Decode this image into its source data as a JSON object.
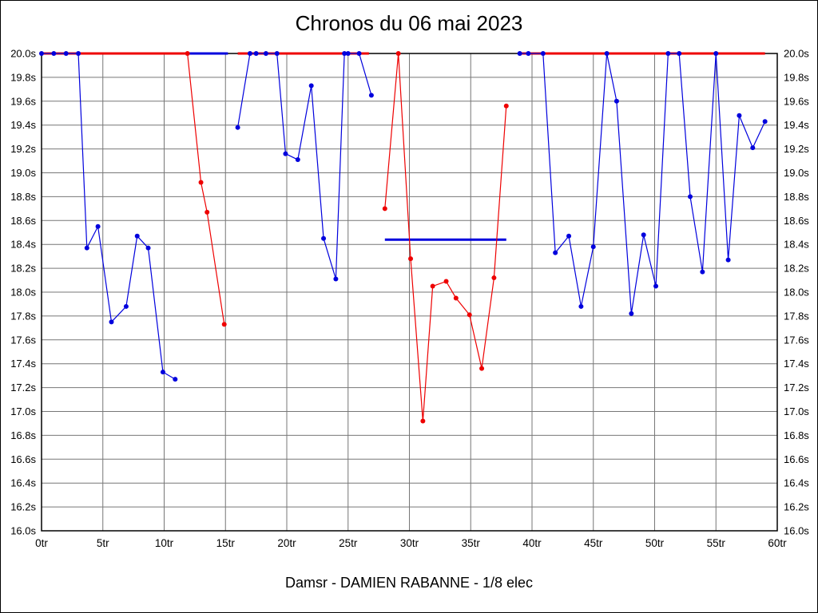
{
  "header": {
    "title": "Chronos du 06 mai 2023"
  },
  "footer": {
    "caption": "Damsr - DAMIEN RABANNE - 1/8 elec"
  },
  "chart_data": {
    "type": "line",
    "title": "Chronos du 06 mai 2023",
    "caption": "Damsr - DAMIEN RABANNE - 1/8 elec",
    "xlim": [
      0,
      60
    ],
    "ylim": [
      16.0,
      20.0
    ],
    "x_tick_step": 5,
    "y_tick_step": 0.2,
    "x_suffix": "tr",
    "y_suffix": "s",
    "grid": true,
    "grid_color": "#777777",
    "colors": {
      "blue": "#0000dd",
      "red": "#ee0000"
    },
    "series": [
      {
        "name": "driver-blue",
        "color": "#0000dd",
        "segments": [
          [
            [
              0,
              20
            ],
            [
              1,
              20
            ],
            [
              2,
              20
            ],
            [
              3,
              20
            ],
            [
              3.7,
              18.37
            ],
            [
              4.6,
              18.55
            ],
            [
              5.7,
              17.75
            ],
            [
              6.9,
              17.88
            ],
            [
              7.8,
              18.47
            ],
            [
              8.7,
              18.37
            ],
            [
              9.9,
              17.33
            ],
            [
              10.9,
              17.27
            ]
          ],
          [
            [
              16,
              19.38
            ],
            [
              17,
              20
            ],
            [
              17.5,
              20
            ],
            [
              18.3,
              20
            ],
            [
              19.2,
              20
            ],
            [
              19.9,
              19.16
            ],
            [
              20.9,
              19.11
            ],
            [
              22,
              19.73
            ],
            [
              23,
              18.45
            ],
            [
              24,
              18.11
            ],
            [
              24.7,
              20
            ],
            [
              25,
              20
            ],
            [
              25.9,
              20
            ],
            [
              26.9,
              19.65
            ]
          ],
          [
            [
              39,
              20
            ],
            [
              39.7,
              20
            ],
            [
              40.9,
              20
            ],
            [
              41.9,
              18.33
            ],
            [
              43,
              18.47
            ],
            [
              44,
              17.88
            ],
            [
              45,
              18.38
            ],
            [
              46.1,
              20
            ],
            [
              46.9,
              19.6
            ],
            [
              48.1,
              17.82
            ],
            [
              49.1,
              18.48
            ],
            [
              50.1,
              18.05
            ],
            [
              51.1,
              20
            ],
            [
              52,
              20
            ],
            [
              52.9,
              18.8
            ],
            [
              53.9,
              18.17
            ],
            [
              55,
              20
            ],
            [
              56,
              18.27
            ],
            [
              56.9,
              19.48
            ],
            [
              58,
              19.21
            ],
            [
              59,
              19.43
            ]
          ]
        ]
      },
      {
        "name": "driver-red",
        "color": "#ee0000",
        "segments": [
          [
            [
              11.9,
              20
            ],
            [
              13,
              18.92
            ],
            [
              13.5,
              18.67
            ],
            [
              14.9,
              17.73
            ]
          ],
          [
            [
              28,
              18.7
            ],
            [
              29.1,
              20
            ],
            [
              30.1,
              18.28
            ],
            [
              31.1,
              16.92
            ],
            [
              31.9,
              18.05
            ],
            [
              33,
              18.09
            ],
            [
              33.8,
              17.95
            ],
            [
              34.9,
              17.81
            ],
            [
              35.9,
              17.36
            ],
            [
              36.9,
              18.12
            ],
            [
              37.9,
              19.56
            ]
          ]
        ]
      }
    ],
    "flat_lines": [
      {
        "color": "#ee0000",
        "y": 20.0,
        "x1": 0,
        "x2": 11.9,
        "width": 3
      },
      {
        "color": "#0000dd",
        "y": 20.0,
        "x1": 11.9,
        "x2": 15.2,
        "width": 3
      },
      {
        "color": "#ee0000",
        "y": 20.0,
        "x1": 16,
        "x2": 26.7,
        "width": 3
      },
      {
        "color": "#ee0000",
        "y": 20.0,
        "x1": 39,
        "x2": 59,
        "width": 3
      },
      {
        "color": "#0000dd",
        "y": 18.44,
        "x1": 28,
        "x2": 37.9,
        "width": 3
      }
    ],
    "y_tick_labels": [
      "20.0s",
      "19.8s",
      "19.6s",
      "19.4s",
      "19.2s",
      "19.0s",
      "18.8s",
      "18.6s",
      "18.4s",
      "18.2s",
      "18.0s",
      "17.8s",
      "17.6s",
      "17.4s",
      "17.2s",
      "17.0s",
      "16.8s",
      "16.6s",
      "16.4s",
      "16.2s",
      "16.0s"
    ],
    "x_tick_labels": [
      "0tr",
      "5tr",
      "10tr",
      "15tr",
      "20tr",
      "25tr",
      "30tr",
      "35tr",
      "40tr",
      "45tr",
      "50tr",
      "55tr",
      "60tr"
    ]
  }
}
